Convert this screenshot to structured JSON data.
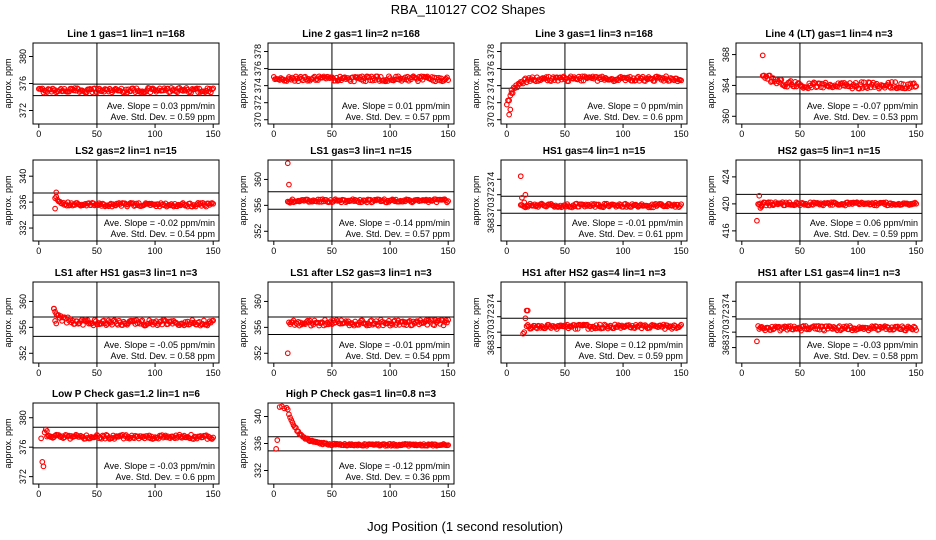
{
  "figure": {
    "title": "RBA_110127  CO2 Shapes",
    "xlabel": "Jog Position (1 second resolution)"
  },
  "chart_data": [
    {
      "type": "scatter",
      "title": "Line 1 gas=1 lin=1 n=168",
      "ylabel": "approx. ppm",
      "xlim": [
        -5,
        155
      ],
      "ylim": [
        370,
        382
      ],
      "xticks": [
        0,
        50,
        100,
        150
      ],
      "yticks": [
        372,
        376,
        380
      ],
      "vline": 50,
      "hlines": [
        375.9,
        374.2
      ],
      "series": [
        {
          "x_start": 0,
          "x_end": 150,
          "shape": "flat",
          "base": 375.0,
          "noise": 0.35
        }
      ],
      "slope_label": "Ave. Slope =",
      "slope_value": "0.03",
      "slope_unit": "ppm/min",
      "std_label": "Ave. Std. Dev. =",
      "std_value": "0.59",
      "std_unit": "ppm",
      "marker_color": "#ff0000"
    },
    {
      "type": "scatter",
      "title": "Line 2 gas=1 lin=2 n=168",
      "ylabel": "approx. ppm",
      "xlim": [
        -5,
        155
      ],
      "ylim": [
        369.5,
        379
      ],
      "xticks": [
        0,
        50,
        100,
        150
      ],
      "yticks": [
        370,
        372,
        374,
        376,
        378
      ],
      "vline": 50,
      "hlines": [
        375.9,
        373.7
      ],
      "series": [
        {
          "x_start": 0,
          "x_end": 150,
          "shape": "flat",
          "base": 374.8,
          "noise": 0.3
        }
      ],
      "slope_label": "Ave. Slope =",
      "slope_value": "0.01",
      "slope_unit": "ppm/min",
      "std_label": "Ave. Std. Dev. =",
      "std_value": "0.57",
      "std_unit": "ppm",
      "marker_color": "#ff0000"
    },
    {
      "type": "scatter",
      "title": "Line 3 gas=1 lin=3 n=168",
      "ylabel": "approx. ppm",
      "xlim": [
        -5,
        155
      ],
      "ylim": [
        369.5,
        379
      ],
      "xticks": [
        0,
        50,
        100,
        150
      ],
      "yticks": [
        370,
        372,
        374,
        376,
        378
      ],
      "vline": 50,
      "hlines": [
        375.9,
        373.7
      ],
      "series": [
        {
          "x_start": 0,
          "x_end": 150,
          "shape": "rise",
          "base": 374.8,
          "noise": 0.3,
          "start": 371.5,
          "tau": 6,
          "extra": [
            [
              2,
              370.6
            ],
            [
              3,
              371.2
            ],
            [
              4,
              373.5
            ]
          ]
        }
      ],
      "slope_label": "Ave. Slope =",
      "slope_value": "0",
      "slope_unit": "ppm/min",
      "std_label": "Ave. Std. Dev. =",
      "std_value": "0.6",
      "std_unit": "ppm",
      "marker_color": "#ff0000"
    },
    {
      "type": "scatter",
      "title": "Line 4 (LT) gas=1 lin=4 n=3",
      "ylabel": "approx. ppm",
      "xlim": [
        -5,
        155
      ],
      "ylim": [
        359,
        369.5
      ],
      "xticks": [
        0,
        50,
        100,
        150
      ],
      "yticks": [
        360,
        364,
        368
      ],
      "vline": 50,
      "hlines": [
        365.1,
        362.9
      ],
      "series": [
        {
          "x_start": 18,
          "x_end": 150,
          "shape": "decay",
          "base": 364.0,
          "noise": 0.45,
          "start": 365.5,
          "tau": 12,
          "extra": [
            [
              18,
              367.9
            ]
          ]
        }
      ],
      "slope_label": "Ave. Slope =",
      "slope_value": "-0.07",
      "slope_unit": "ppm/min",
      "std_label": "Ave. Std. Dev. =",
      "std_value": "0.53",
      "std_unit": "ppm",
      "marker_color": "#ff0000"
    },
    {
      "type": "scatter",
      "title": "LS2 gas=2 lin=1 n=15",
      "ylabel": "approx. ppm",
      "xlim": [
        -5,
        155
      ],
      "ylim": [
        330,
        342.5
      ],
      "xticks": [
        0,
        50,
        100,
        150
      ],
      "yticks": [
        332,
        336,
        340
      ],
      "vline": 50,
      "hlines": [
        337.4,
        334.0
      ],
      "series": [
        {
          "x_start": 14,
          "x_end": 150,
          "shape": "decay",
          "base": 335.6,
          "noise": 0.3,
          "start": 336.8,
          "tau": 5,
          "extra": [
            [
              14,
              335.0
            ],
            [
              15,
              337.5
            ]
          ]
        }
      ],
      "slope_label": "Ave. Slope =",
      "slope_value": "-0.02",
      "slope_unit": "ppm/min",
      "std_label": "Ave. Std. Dev. =",
      "std_value": "0.54",
      "std_unit": "ppm",
      "marker_color": "#ff0000"
    },
    {
      "type": "scatter",
      "title": "LS1 gas=3 lin=1 n=15",
      "ylabel": "approx. ppm",
      "xlim": [
        -5,
        155
      ],
      "ylim": [
        350.5,
        363
      ],
      "xticks": [
        0,
        50,
        100,
        150
      ],
      "yticks": [
        352,
        356,
        360
      ],
      "vline": 50,
      "hlines": [
        358.1,
        355.4
      ],
      "series": [
        {
          "x_start": 12,
          "x_end": 150,
          "shape": "flat",
          "base": 356.7,
          "noise": 0.25,
          "extra": [
            [
              12,
              362.5
            ],
            [
              13,
              359.2
            ],
            [
              14,
              356.4
            ]
          ]
        }
      ],
      "slope_label": "Ave. Slope =",
      "slope_value": "-0.14",
      "slope_unit": "ppm/min",
      "std_label": "Ave. Std. Dev. =",
      "std_value": "0.57",
      "std_unit": "ppm",
      "marker_color": "#ff0000"
    },
    {
      "type": "scatter",
      "title": "HS1 gas=4 lin=1 n=15",
      "ylabel": "approx. ppm",
      "xlim": [
        -5,
        155
      ],
      "ylim": [
        366,
        376.5
      ],
      "xticks": [
        0,
        50,
        100,
        150
      ],
      "yticks": [
        368,
        370,
        372,
        374
      ],
      "vline": 50,
      "hlines": [
        371.8,
        369.6
      ],
      "series": [
        {
          "x_start": 12,
          "x_end": 150,
          "shape": "flat",
          "base": 370.6,
          "noise": 0.25,
          "extra": [
            [
              12,
              374.4
            ],
            [
              13,
              371.6
            ],
            [
              15,
              371.0
            ],
            [
              16,
              372.0
            ]
          ]
        }
      ],
      "slope_label": "Ave. Slope =",
      "slope_value": "-0.01",
      "slope_unit": "ppm/min",
      "std_label": "Ave. Std. Dev. =",
      "std_value": "0.61",
      "std_unit": "ppm",
      "marker_color": "#ff0000"
    },
    {
      "type": "scatter",
      "title": "HS2 gas=5 lin=1 n=15",
      "ylabel": "approx. ppm",
      "xlim": [
        -5,
        155
      ],
      "ylim": [
        414.5,
        426.5
      ],
      "xticks": [
        0,
        50,
        100,
        150
      ],
      "yticks": [
        416,
        420,
        424
      ],
      "vline": 50,
      "hlines": [
        421.4,
        418.6
      ],
      "series": [
        {
          "x_start": 14,
          "x_end": 150,
          "shape": "flat",
          "base": 420.0,
          "noise": 0.25,
          "extra": [
            [
              13,
              417.5
            ],
            [
              15,
              421.2
            ],
            [
              16,
              419.4
            ],
            [
              17,
              419.6
            ]
          ]
        }
      ],
      "slope_label": "Ave. Slope =",
      "slope_value": "0.06",
      "slope_unit": "ppm/min",
      "std_label": "Ave. Std. Dev. =",
      "std_value": "0.59",
      "std_unit": "ppm",
      "marker_color": "#ff0000"
    },
    {
      "type": "scatter",
      "title": "LS1 after HS1 gas=3 lin=1 n=3",
      "ylabel": "approx. ppm",
      "xlim": [
        -5,
        155
      ],
      "ylim": [
        350.5,
        363
      ],
      "xticks": [
        0,
        50,
        100,
        150
      ],
      "yticks": [
        352,
        356,
        360
      ],
      "vline": 50,
      "hlines": [
        357.6,
        354.6
      ],
      "series": [
        {
          "x_start": 13,
          "x_end": 150,
          "shape": "decay",
          "base": 356.7,
          "noise": 0.45,
          "start": 358.5,
          "tau": 8,
          "extra": [
            [
              13,
              358.9
            ],
            [
              14,
              357.0
            ],
            [
              15,
              356.6
            ]
          ]
        }
      ],
      "slope_label": "Ave. Slope =",
      "slope_value": "-0.05",
      "slope_unit": "ppm/min",
      "std_label": "Ave. Std. Dev. =",
      "std_value": "0.58",
      "std_unit": "ppm",
      "marker_color": "#ff0000"
    },
    {
      "type": "scatter",
      "title": "LS1 after LS2 gas=3 lin=1 n=3",
      "ylabel": "approx. ppm",
      "xlim": [
        -5,
        155
      ],
      "ylim": [
        350.5,
        363
      ],
      "xticks": [
        0,
        50,
        100,
        150
      ],
      "yticks": [
        352,
        356,
        360
      ],
      "vline": 50,
      "hlines": [
        357.6,
        354.9
      ],
      "series": [
        {
          "x_start": 13,
          "x_end": 150,
          "shape": "flat",
          "base": 356.7,
          "noise": 0.45,
          "extra": [
            [
              12,
              352.0
            ]
          ]
        }
      ],
      "slope_label": "Ave. Slope =",
      "slope_value": "-0.01",
      "slope_unit": "ppm/min",
      "std_label": "Ave. Std. Dev. =",
      "std_value": "0.54",
      "std_unit": "ppm",
      "marker_color": "#ff0000"
    },
    {
      "type": "scatter",
      "title": "HS1 after HS2 gas=4 lin=1 n=3",
      "ylabel": "approx. ppm",
      "xlim": [
        -5,
        155
      ],
      "ylim": [
        366,
        376.5
      ],
      "xticks": [
        0,
        50,
        100,
        150
      ],
      "yticks": [
        368,
        370,
        372,
        374
      ],
      "vline": 50,
      "hlines": [
        371.8,
        369.6
      ],
      "series": [
        {
          "x_start": 17,
          "x_end": 150,
          "shape": "flat",
          "base": 370.7,
          "noise": 0.3,
          "extra": [
            [
              14,
              369.8
            ],
            [
              15,
              370.0
            ],
            [
              16,
              371.8
            ],
            [
              17,
              372.8
            ],
            [
              18,
              372.8
            ]
          ]
        }
      ],
      "slope_label": "Ave. Slope =",
      "slope_value": "0.12",
      "slope_unit": "ppm/min",
      "std_label": "Ave. Std. Dev. =",
      "std_value": "0.59",
      "std_unit": "ppm",
      "marker_color": "#ff0000"
    },
    {
      "type": "scatter",
      "title": "HS1 after LS1 gas=4 lin=1 n=3",
      "ylabel": "approx. ppm",
      "xlim": [
        -5,
        155
      ],
      "ylim": [
        366,
        376.5
      ],
      "xticks": [
        0,
        50,
        100,
        150
      ],
      "yticks": [
        368,
        370,
        372,
        374
      ],
      "vline": 50,
      "hlines": [
        371.7,
        369.4
      ],
      "series": [
        {
          "x_start": 15,
          "x_end": 150,
          "shape": "flat",
          "base": 370.5,
          "noise": 0.3,
          "extra": [
            [
              13,
              368.8
            ],
            [
              14,
              370.8
            ]
          ]
        }
      ],
      "slope_label": "Ave. Slope =",
      "slope_value": "-0.03",
      "slope_unit": "ppm/min",
      "std_label": "Ave. Std. Dev. =",
      "std_value": "0.58",
      "std_unit": "ppm",
      "marker_color": "#ff0000"
    },
    {
      "type": "scatter",
      "title": "Low P Check gas=1.2 lin=1 n=6",
      "ylabel": "approx. ppm",
      "xlim": [
        -5,
        155
      ],
      "ylim": [
        371,
        382
      ],
      "xticks": [
        0,
        50,
        100,
        150
      ],
      "yticks": [
        372,
        376,
        380
      ],
      "vline": 50,
      "hlines": [
        378.7,
        375.9
      ],
      "series": [
        {
          "x_start": 7,
          "x_end": 150,
          "shape": "flat",
          "base": 377.4,
          "noise": 0.3,
          "extra": [
            [
              2,
              377.2
            ],
            [
              3,
              374.0
            ],
            [
              4,
              373.4
            ],
            [
              5,
              378.0
            ],
            [
              6,
              378.4
            ],
            [
              7,
              378.2
            ]
          ]
        }
      ],
      "slope_label": "Ave. Slope =",
      "slope_value": "-0.03",
      "slope_unit": "ppm/min",
      "std_label": "Ave. Std. Dev. =",
      "std_value": "0.6",
      "std_unit": "ppm",
      "marker_color": "#ff0000"
    },
    {
      "type": "scatter",
      "title": "High P Check gas=1 lin=0.8 n=3",
      "ylabel": "approx. ppm",
      "xlim": [
        -5,
        155
      ],
      "ylim": [
        330,
        342
      ],
      "xticks": [
        0,
        50,
        100,
        150
      ],
      "yticks": [
        332,
        336,
        340
      ],
      "vline": 50,
      "hlines": [
        337.0,
        334.9
      ],
      "series": [
        {
          "x_start": 12,
          "x_end": 150,
          "shape": "decay",
          "base": 335.8,
          "noise": 0.15,
          "start": 341.0,
          "tau": 9,
          "extra": [
            [
              2,
              335.2
            ],
            [
              3,
              336.5
            ],
            [
              5,
              341.4
            ],
            [
              7,
              341.5
            ],
            [
              9,
              341.2
            ],
            [
              11,
              341.3
            ]
          ]
        }
      ],
      "slope_label": "Ave. Slope =",
      "slope_value": "-0.12",
      "slope_unit": "ppm/min",
      "std_label": "Ave. Std. Dev. =",
      "std_value": "0.36",
      "std_unit": "ppm",
      "marker_color": "#ff0000"
    }
  ]
}
